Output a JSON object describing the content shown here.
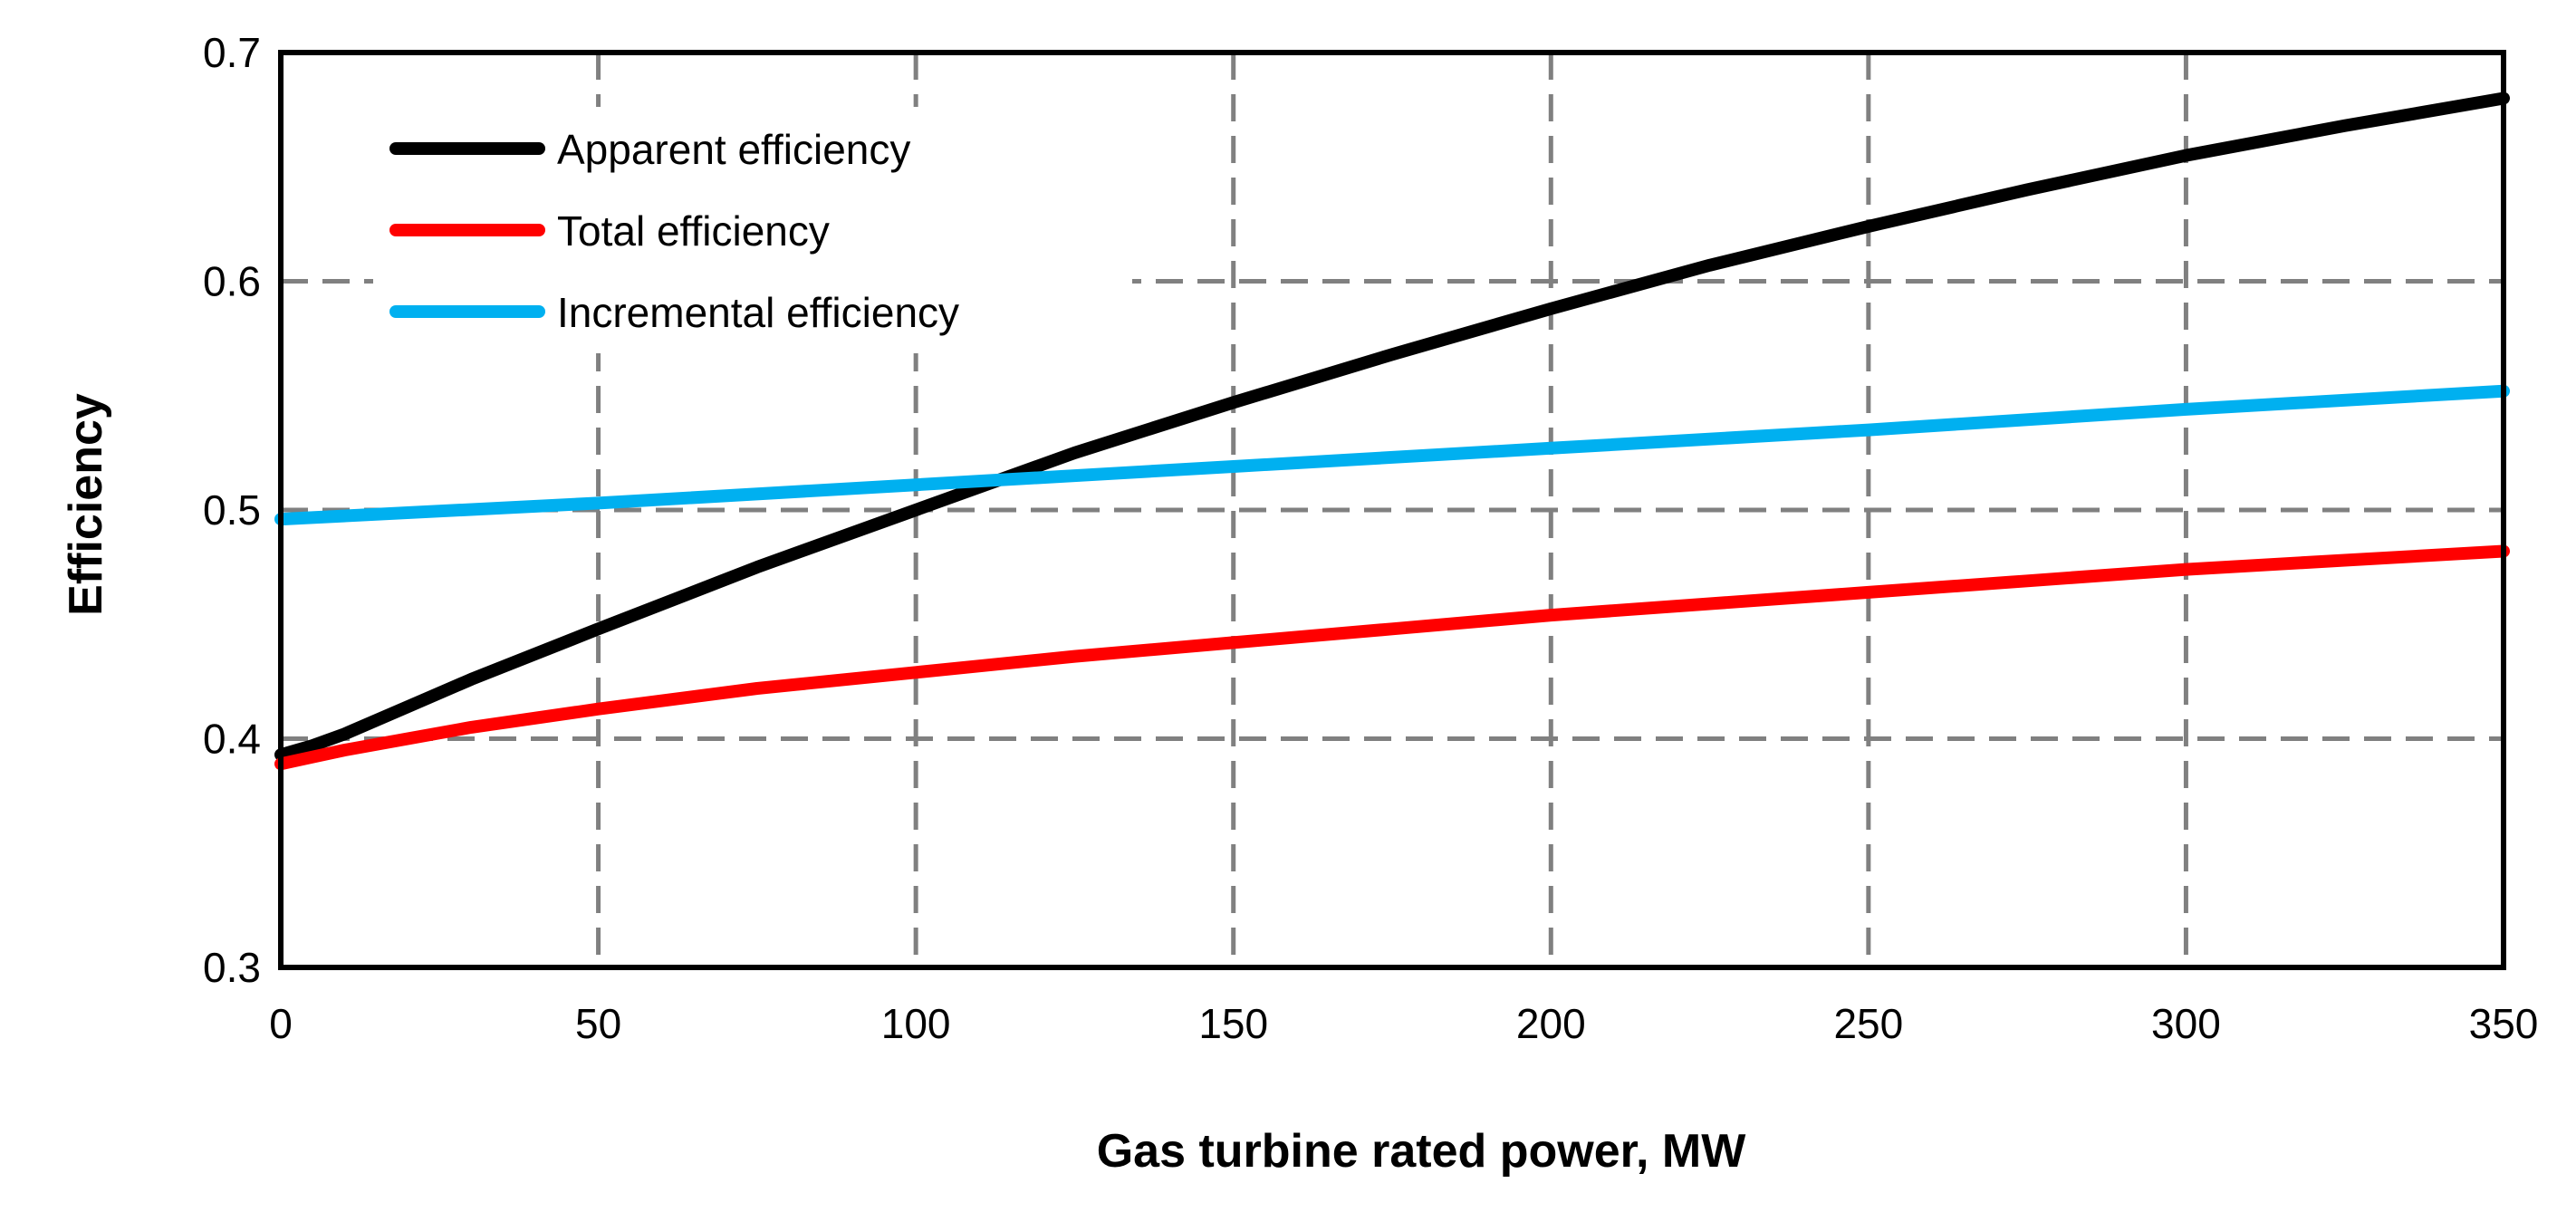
{
  "chart_data": {
    "type": "line",
    "xlabel": "Gas turbine rated power, MW",
    "ylabel": "Efficiency",
    "xlim": [
      0,
      350
    ],
    "ylim": [
      0.3,
      0.7
    ],
    "xticks": [
      "0",
      "50",
      "100",
      "150",
      "200",
      "250",
      "300",
      "350"
    ],
    "yticks": [
      "0.3",
      "0.4",
      "0.5",
      "0.6",
      "0.7"
    ],
    "grid": true,
    "legend_position": "top-left",
    "series": [
      {
        "name": "Apparent efficiency",
        "color": "#000000",
        "x": [
          0,
          5,
          10,
          20,
          30,
          50,
          75,
          100,
          125,
          150,
          175,
          200,
          225,
          250,
          275,
          300,
          325,
          350
        ],
        "y": [
          0.393,
          0.397,
          0.402,
          0.414,
          0.426,
          0.448,
          0.475,
          0.5,
          0.525,
          0.547,
          0.568,
          0.588,
          0.607,
          0.624,
          0.64,
          0.655,
          0.668,
          0.68
        ]
      },
      {
        "name": "Total efficiency",
        "color": "#ff0000",
        "x": [
          0,
          5,
          10,
          20,
          30,
          50,
          75,
          100,
          125,
          150,
          175,
          200,
          225,
          250,
          275,
          300,
          325,
          350
        ],
        "y": [
          0.389,
          0.392,
          0.395,
          0.4,
          0.405,
          0.413,
          0.422,
          0.429,
          0.436,
          0.442,
          0.448,
          0.454,
          0.459,
          0.464,
          0.469,
          0.474,
          0.478,
          0.482
        ]
      },
      {
        "name": "Incremental efficiency",
        "color": "#00b0f0",
        "x": [
          0,
          50,
          100,
          150,
          200,
          250,
          300,
          350
        ],
        "y": [
          0.496,
          0.503,
          0.511,
          0.519,
          0.527,
          0.535,
          0.544,
          0.552
        ]
      }
    ]
  }
}
